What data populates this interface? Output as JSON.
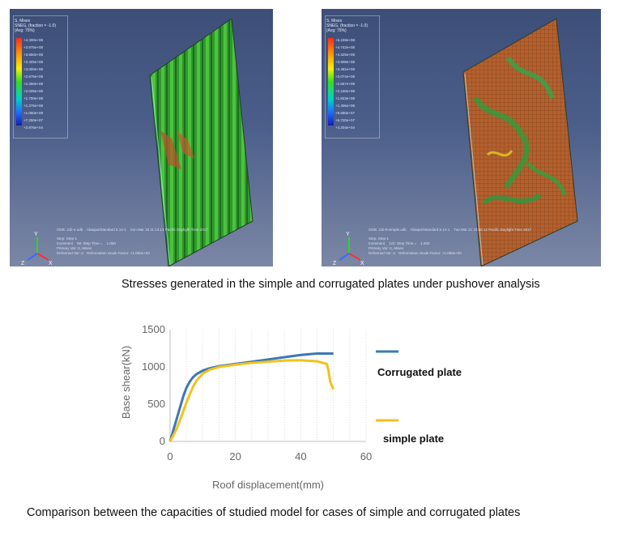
{
  "images": {
    "left": {
      "legend_header": "S, Mises\nSNEG, (fraction = -1.0)\n(Avg: 75%)",
      "legend_values": "+4.300e+08\n+3.975e+08\n+3.650e+08\n+3.325e+08\n+3.000e+08\n+2.675e+08\n+2.350e+08\n+2.025e+08\n+1.700e+08\n+1.375e+08\n+1.050e+08\n+7.250e+07\n+3.976e+04",
      "footer_odb": "ODB: Job-4.odb    Abaqus/Standard 6.14-1    Sun Mar 19 11:13:13 Pacific Daylight Time 2017",
      "footer_step": "Step: Step-1\nIncrement    98: Step Time =    1.000\nPrimary Var: S, Mises\nDeformed Var: U   Deformation Scale Factor: +1.000e+00",
      "triad_y": "Y",
      "triad_z": "Z",
      "triad_x": "X"
    },
    "right": {
      "legend_header": "S, Mises\nSNEG, (fraction = -1.0)\n(Avg: 75%)",
      "legend_values": "+5.159e+08\n+4.742e+08\n+4.325e+08\n+3.908e+08\n+3.491e+08\n+3.074e+08\n+2.657e+08\n+2.240e+08\n+1.823e+08\n+1.406e+08\n+9.890e+07\n+5.720e+07\n+4.204e+04",
      "footer_odb": "ODB: Job-9-simple.odb    Abaqus/Standard 6.14-1    Tue Mar 21 10:55:12 Pacific Daylight Time 2017",
      "footer_step": "Step: Step-1\nIncrement    122: Step Time =    1.000\nPrimary Var: S, Mises\nDeformed Var: U   Deformation Scale Factor: +1.000e+00",
      "triad_y": "Y",
      "triad_z": "Z",
      "triad_x": "X"
    }
  },
  "captions": {
    "top": "Stresses generated in the simple and corrugated plates under pushover analysis",
    "bottom": "Comparison between the capacities of studied model for cases of simple and corrugated plates"
  },
  "colors": {
    "corrugated": "#3b78b8",
    "simple": "#f2c21c",
    "axis": "#bfbfbf"
  },
  "chart_data": {
    "type": "line",
    "xlabel": "Roof displacement(mm)",
    "ylabel": "Base shear(kN)",
    "xlim": [
      0,
      60
    ],
    "ylim": [
      0,
      1500
    ],
    "xticks": [
      0,
      20,
      40,
      60
    ],
    "yticks": [
      0,
      500,
      1000,
      1500
    ],
    "grid": "vertical dotted",
    "legend_position": "right",
    "series": [
      {
        "name": "Corrugated plate",
        "x": [
          0,
          1,
          2,
          3,
          4,
          5,
          6,
          7,
          8,
          10,
          12,
          15,
          20,
          25,
          30,
          35,
          40,
          45,
          50
        ],
        "y": [
          0,
          150,
          300,
          450,
          600,
          720,
          800,
          860,
          900,
          950,
          980,
          1010,
          1040,
          1070,
          1100,
          1130,
          1160,
          1180,
          1180
        ]
      },
      {
        "name": "simple plate",
        "x": [
          0,
          1,
          2,
          3,
          4,
          5,
          6,
          7,
          8,
          10,
          12,
          15,
          20,
          25,
          30,
          35,
          40,
          45,
          48,
          48.5,
          49,
          50
        ],
        "y": [
          0,
          80,
          170,
          280,
          400,
          520,
          630,
          730,
          810,
          910,
          960,
          1000,
          1030,
          1055,
          1070,
          1085,
          1090,
          1075,
          1040,
          950,
          800,
          700
        ]
      }
    ]
  }
}
